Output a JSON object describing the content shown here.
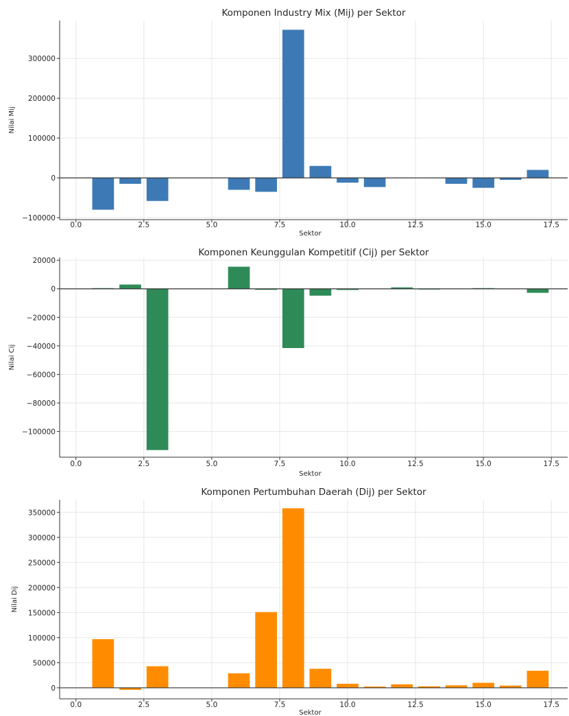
{
  "chart_data": [
    {
      "type": "bar",
      "title": "Komponen Industry Mix (Mij) per Sektor",
      "xlabel": "Sektor",
      "ylabel": "Nilai Mij",
      "color": "#3d7ab5",
      "xlim": [
        -0.6,
        18.1
      ],
      "ylim": [
        -105000,
        395000
      ],
      "xticks": [
        "0.0",
        "2.5",
        "5.0",
        "7.5",
        "10.0",
        "12.5",
        "15.0",
        "17.5"
      ],
      "yticks": [
        "−100000",
        "0",
        "100000",
        "200000",
        "300000"
      ],
      "grid": true,
      "x": [
        1,
        2,
        3,
        4,
        5,
        6,
        7,
        8,
        9,
        10,
        11,
        12,
        13,
        14,
        15,
        16,
        17
      ],
      "values": [
        -80000,
        -15000,
        -58000,
        0,
        0,
        -30000,
        -35000,
        372000,
        30000,
        -12000,
        -23000,
        0,
        0,
        -15000,
        -25000,
        -5000,
        20000
      ]
    },
    {
      "type": "bar",
      "title": "Komponen Keunggulan Kompetitif (Cij) per Sektor",
      "xlabel": "Sektor",
      "ylabel": "Nilai Cij",
      "color": "#2e8b57",
      "xlim": [
        -0.6,
        18.1
      ],
      "ylim": [
        -118000,
        22000
      ],
      "xticks": [
        "0.0",
        "2.5",
        "5.0",
        "7.5",
        "10.0",
        "12.5",
        "15.0",
        "17.5"
      ],
      "yticks": [
        "−100000",
        "−80000",
        "−60000",
        "−40000",
        "−20000",
        "0",
        "20000"
      ],
      "grid": true,
      "x": [
        1,
        2,
        3,
        4,
        5,
        6,
        7,
        8,
        9,
        10,
        11,
        12,
        13,
        14,
        15,
        16,
        17
      ],
      "values": [
        500,
        3000,
        -113000,
        0,
        0,
        15500,
        -700,
        -41500,
        -4800,
        -800,
        0,
        1000,
        -500,
        0,
        500,
        0,
        -2800
      ]
    },
    {
      "type": "bar",
      "title": "Komponen Pertumbuhan Daerah (Dij) per Sektor",
      "xlabel": "Sektor",
      "ylabel": "Nilai Dij",
      "color": "#ff8c00",
      "xlim": [
        -0.6,
        18.1
      ],
      "ylim": [
        -22000,
        375000
      ],
      "xticks": [
        "0.0",
        "2.5",
        "5.0",
        "7.5",
        "10.0",
        "12.5",
        "15.0",
        "17.5"
      ],
      "yticks": [
        "0",
        "50000",
        "100000",
        "150000",
        "200000",
        "250000",
        "300000",
        "350000"
      ],
      "grid": true,
      "x": [
        1,
        2,
        3,
        4,
        5,
        6,
        7,
        8,
        9,
        10,
        11,
        12,
        13,
        14,
        15,
        16,
        17
      ],
      "values": [
        97000,
        -4000,
        43000,
        0,
        0,
        29000,
        151000,
        358000,
        38000,
        8000,
        2500,
        7000,
        3000,
        5000,
        10000,
        4500,
        34000
      ]
    }
  ]
}
